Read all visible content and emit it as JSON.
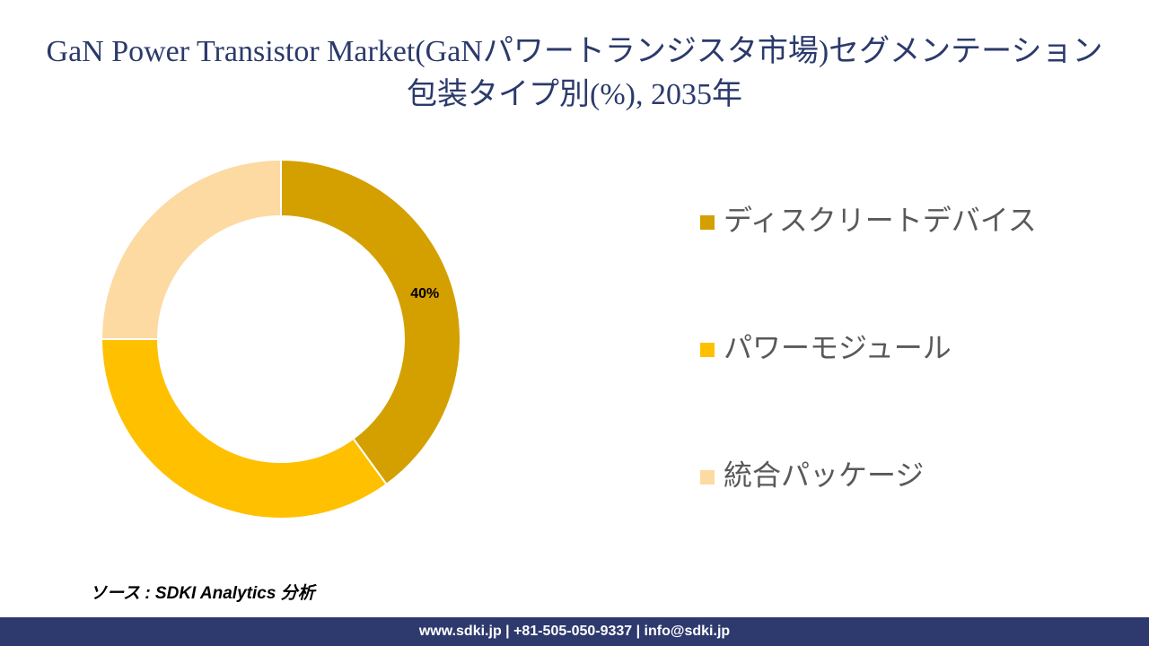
{
  "chart_data": {
    "type": "donut",
    "title": "GaN Power Transistor Market(GaNパワートランジスタ市場)セグメンテーション包装タイプ別(%), 2035年",
    "categories": [
      "ディスクリートデバイス",
      "パワーモジュール",
      "統合パッケージ"
    ],
    "values": [
      40,
      35,
      25
    ],
    "value_labels": [
      "40%",
      null,
      null
    ],
    "colors": [
      "#d4a000",
      "#ffc000",
      "#fcdaa2"
    ],
    "legend": "right"
  },
  "source": "ソース : SDKI Analytics 分析",
  "footer": "www.sdki.jp | +81-505-050-9337 | info@sdki.jp"
}
